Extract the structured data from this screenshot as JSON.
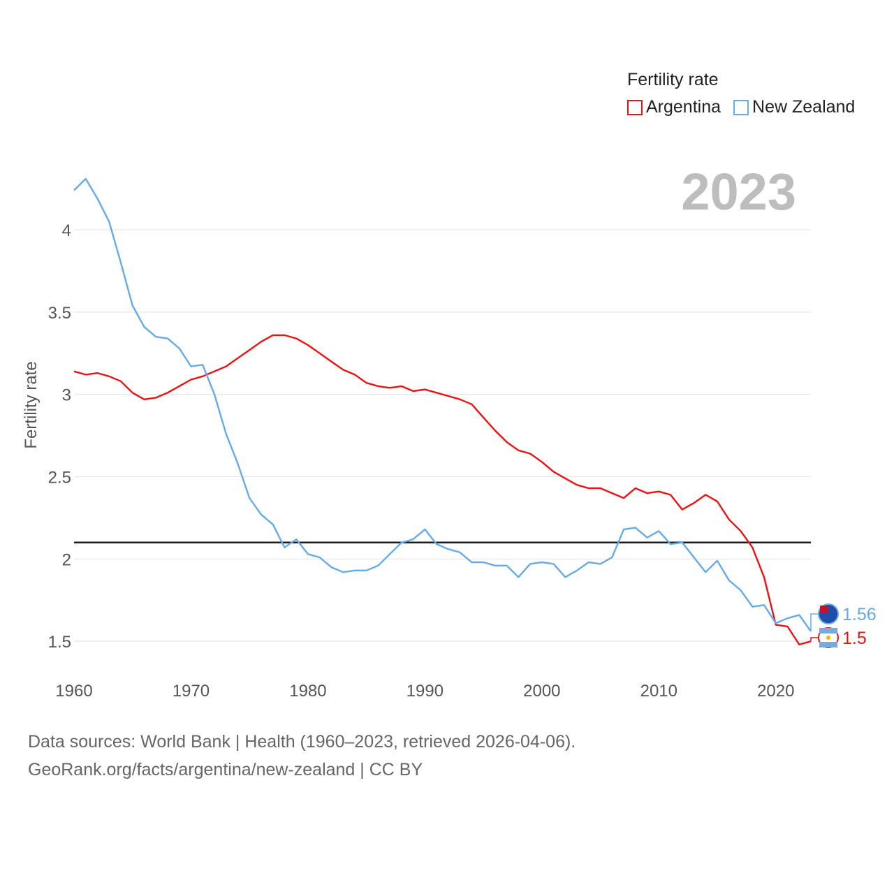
{
  "legend": {
    "title": "Fertility rate",
    "items": [
      {
        "label": "Argentina",
        "color": "#ee1111"
      },
      {
        "label": "New Zealand",
        "color": "#66aaea"
      }
    ]
  },
  "footer": {
    "line1": "Data sources: World Bank | Health (1960–2023, retrieved 2026-04-06).",
    "line2": "GeoRank.org/facts/argentina/new-zealand | CC BY"
  },
  "chart_data": {
    "type": "line",
    "year_label": "2023",
    "ylabel": "Fertility rate",
    "xlim": [
      1960,
      2023
    ],
    "ylim": [
      1.28,
      4.45
    ],
    "xticks": [
      1960,
      1970,
      1980,
      1990,
      2000,
      2010,
      2020
    ],
    "yticks": [
      1.5,
      2,
      2.5,
      3,
      3.5,
      4
    ],
    "ytick_labels": [
      "1.5",
      "2",
      "2.5",
      "3",
      "3.5",
      "4"
    ],
    "reference_line": 2.1,
    "grid": true,
    "series": [
      {
        "name": "Argentina",
        "color": "#ee1111",
        "end_label": "1.5",
        "x": [
          1960,
          1961,
          1962,
          1963,
          1964,
          1965,
          1966,
          1967,
          1968,
          1969,
          1970,
          1971,
          1972,
          1973,
          1974,
          1975,
          1976,
          1977,
          1978,
          1979,
          1980,
          1981,
          1982,
          1983,
          1984,
          1985,
          1986,
          1987,
          1988,
          1989,
          1990,
          1991,
          1992,
          1993,
          1994,
          1995,
          1996,
          1997,
          1998,
          1999,
          2000,
          2001,
          2002,
          2003,
          2004,
          2005,
          2006,
          2007,
          2008,
          2009,
          2010,
          2011,
          2012,
          2013,
          2014,
          2015,
          2016,
          2017,
          2018,
          2019,
          2020,
          2021,
          2022,
          2023
        ],
        "values": [
          3.14,
          3.12,
          3.13,
          3.11,
          3.08,
          3.01,
          2.97,
          2.98,
          3.01,
          3.05,
          3.09,
          3.11,
          3.14,
          3.17,
          3.22,
          3.27,
          3.32,
          3.36,
          3.36,
          3.34,
          3.3,
          3.25,
          3.2,
          3.15,
          3.12,
          3.07,
          3.05,
          3.04,
          3.05,
          3.02,
          3.03,
          3.01,
          2.99,
          2.97,
          2.94,
          2.86,
          2.78,
          2.71,
          2.66,
          2.64,
          2.59,
          2.53,
          2.49,
          2.45,
          2.43,
          2.43,
          2.4,
          2.37,
          2.43,
          2.4,
          2.41,
          2.39,
          2.3,
          2.34,
          2.39,
          2.35,
          2.24,
          2.17,
          2.07,
          1.89,
          1.6,
          1.59,
          1.48,
          1.5
        ]
      },
      {
        "name": "New Zealand",
        "color": "#66aaea",
        "end_label": "1.56",
        "x": [
          1960,
          1961,
          1962,
          1963,
          1964,
          1965,
          1966,
          1967,
          1968,
          1969,
          1970,
          1971,
          1972,
          1973,
          1974,
          1975,
          1976,
          1977,
          1978,
          1979,
          1980,
          1981,
          1982,
          1983,
          1984,
          1985,
          1986,
          1987,
          1988,
          1989,
          1990,
          1991,
          1992,
          1993,
          1994,
          1995,
          1996,
          1997,
          1998,
          1999,
          2000,
          2001,
          2002,
          2003,
          2004,
          2005,
          2006,
          2007,
          2008,
          2009,
          2010,
          2011,
          2012,
          2013,
          2014,
          2015,
          2016,
          2017,
          2018,
          2019,
          2020,
          2021,
          2022,
          2023
        ],
        "values": [
          4.24,
          4.31,
          4.19,
          4.05,
          3.8,
          3.54,
          3.41,
          3.35,
          3.34,
          3.28,
          3.17,
          3.18,
          3.0,
          2.76,
          2.58,
          2.37,
          2.27,
          2.21,
          2.07,
          2.12,
          2.03,
          2.01,
          1.95,
          1.92,
          1.93,
          1.93,
          1.96,
          2.03,
          2.1,
          2.12,
          2.18,
          2.09,
          2.06,
          2.04,
          1.98,
          1.98,
          1.96,
          1.96,
          1.89,
          1.97,
          1.98,
          1.97,
          1.89,
          1.93,
          1.98,
          1.97,
          2.01,
          2.18,
          2.19,
          2.13,
          2.17,
          2.09,
          2.1,
          2.01,
          1.92,
          1.99,
          1.87,
          1.81,
          1.71,
          1.72,
          1.61,
          1.64,
          1.66,
          1.56
        ]
      }
    ]
  }
}
